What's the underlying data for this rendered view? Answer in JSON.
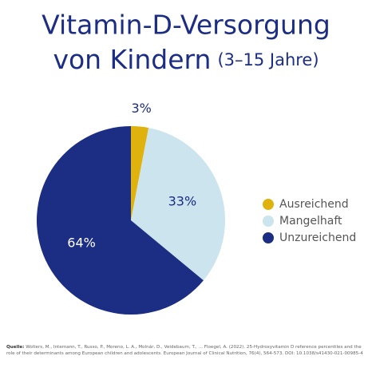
{
  "chart_data": {
    "type": "pie",
    "title": [
      "Vitamin-D-Versorgung",
      "von Kindern"
    ],
    "subtitle": "(3–15 Jahre)",
    "categories": [
      "Ausreichend",
      "Mangelhaft",
      "Unzureichend"
    ],
    "values": [
      3,
      33,
      64
    ],
    "value_labels": [
      "3%",
      "33%",
      "64%"
    ],
    "colors": [
      "#e0b20e",
      "#cbe4ee",
      "#1c2d84"
    ],
    "legend": "right",
    "source_label": "Quelle:",
    "source": "Wolters, M., Intemann, T., Russo, P., Moreno, L. A., Molnár, D., Veidebaum, T., ... Floegel, A. (2022). 25-Hydroxyvitamin D reference percentiles and the role of their determinants among European children and adolescents. European Journal of Clinical Nutrition, 76(4), 564-573. DOI: 10.1038/s41430-021-00985-4"
  }
}
